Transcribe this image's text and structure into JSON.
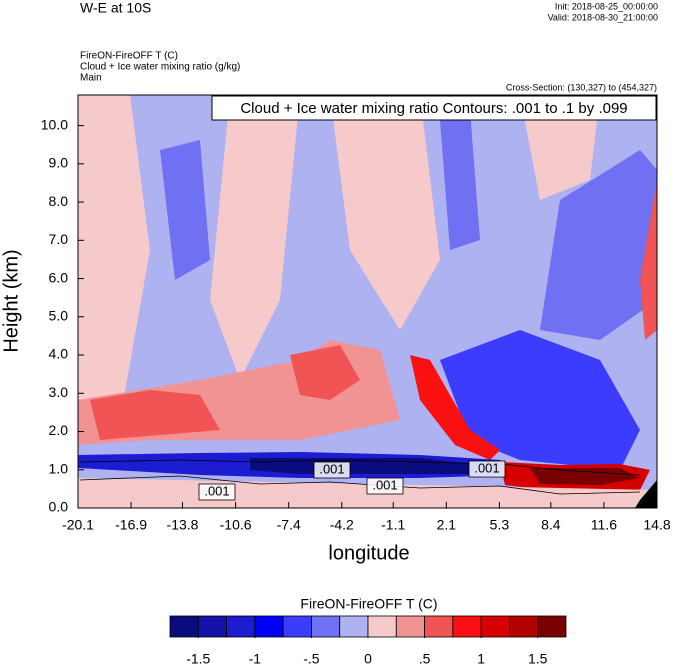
{
  "chart_data": {
    "type": "contour",
    "title": "W-E at 10S",
    "init": "Init: 2018-08-25_00:00:00",
    "valid": "Valid: 2018-08-30_21:00:00",
    "field_labels": [
      "FireON-FireOFF T   (C)",
      "Cloud + Ice water mixing ratio   (g/kg)",
      "Main"
    ],
    "cross_section": "Cross-Section: (130,327) to (454,327)",
    "contour_info": "Cloud + Ice water mixing ratio Contours: .001 to .1 by .099",
    "x_label": "longitude",
    "y_label": "Height (km)",
    "xlim": [
      -20.1,
      14.8
    ],
    "xticks": [
      -20.1,
      -16.9,
      -13.8,
      -10.6,
      -7.4,
      -4.2,
      -1.1,
      2.1,
      5.3,
      8.4,
      11.6,
      14.8
    ],
    "ylim": [
      0,
      10.8
    ],
    "yticks": [
      {
        "value": 0,
        "label": "0.0"
      },
      {
        "value": 1,
        "label": "1.0"
      },
      {
        "value": 2,
        "label": "2.0"
      },
      {
        "value": 3,
        "label": "3.0"
      },
      {
        "value": 4,
        "label": "4.0"
      },
      {
        "value": 5,
        "label": "5.0"
      },
      {
        "value": 6,
        "label": "6.0"
      },
      {
        "value": 7,
        "label": "7.0"
      },
      {
        "value": 8,
        "label": "8.0"
      },
      {
        "value": 9,
        "label": "9.0"
      },
      {
        "value": 10,
        "label": "10.0"
      }
    ],
    "contour_labels": [
      {
        "value": 0.001,
        "label": ".001"
      },
      {
        "value": 0.001,
        "label": ".001"
      },
      {
        "value": 0.001,
        "label": ".001"
      },
      {
        "value": 0.001,
        "label": ".001"
      }
    ],
    "colorbar": {
      "title": "FireON-FireOFF T  (C)",
      "colors": [
        "#0b0b80",
        "#1212a8",
        "#1c1cd0",
        "#0000f5",
        "#3c3cff",
        "#6f70f2",
        "#aeb2f0",
        "#f6caca",
        "#f29393",
        "#f05454",
        "#fa1010",
        "#d60000",
        "#b20000",
        "#780000"
      ],
      "ticks": [
        {
          "value": -1.5,
          "label": "-1.5"
        },
        {
          "value": -1,
          "label": "-1"
        },
        {
          "value": -0.5,
          "label": "-.5"
        },
        0,
        {
          "value": 0.5,
          "label": ".5"
        },
        1,
        1.5
      ],
      "lim": [
        -1.75,
        1.75
      ]
    }
  }
}
